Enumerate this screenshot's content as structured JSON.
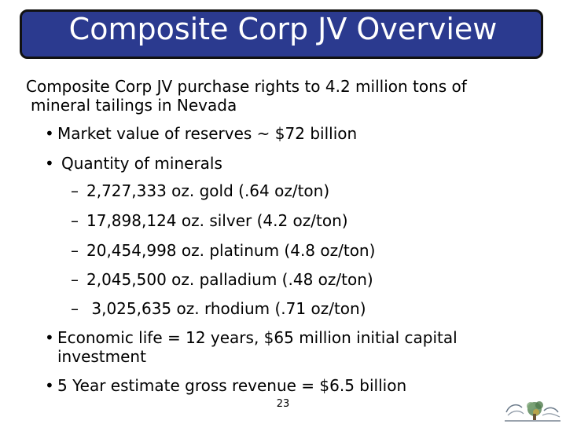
{
  "slide": {
    "title": "Composite Corp JV Overview",
    "intro_line1": "Composite Corp JV purchase rights to 4.2 million tons of",
    "intro_line2": "mineral tailings in Nevada",
    "bullets": [
      "Market value of reserves ~ $72 billion",
      "Quantity of minerals"
    ],
    "minerals": [
      "2,727,333 oz. gold (.64 oz/ton)",
      "17,898,124 oz. silver (4.2 oz/ton)",
      "20,454,998 oz. platinum (4.8 oz/ton)",
      "2,045,500 oz. palladium (.48 oz/ton)",
      " 3,025,635 oz. rhodium (.71 oz/ton)"
    ],
    "economic_life": "Economic life = 12 years, $65 million initial capital investment",
    "revenue": "5 Year estimate gross revenue = $6.5 billion",
    "page_number": "23",
    "bullet_glyph": "•",
    "dash_glyph": "–"
  },
  "colors": {
    "title_bg": "#2b3a8f",
    "title_text": "#ffffff"
  }
}
